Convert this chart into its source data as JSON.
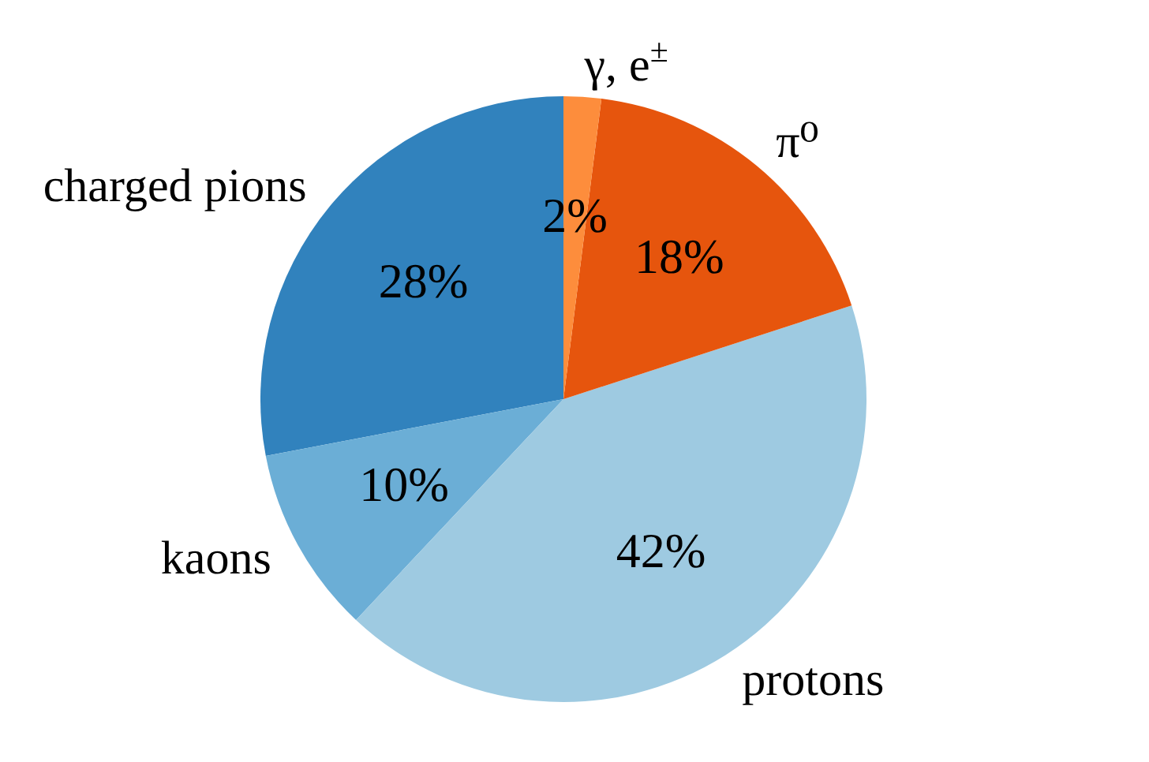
{
  "chart_data": {
    "type": "pie",
    "categories": [
      "charged pions",
      "kaons",
      "protons",
      "π⁰",
      "γ, e$^{±}$"
    ],
    "values": [
      28,
      10,
      42,
      18,
      2
    ],
    "colors": [
      "#3182bd",
      "#6baed6",
      "#9ecae1",
      "#e6550d",
      "#fd8d3c"
    ],
    "value_labels": [
      "28%",
      "10%",
      "42%",
      "18%",
      "2%"
    ]
  }
}
